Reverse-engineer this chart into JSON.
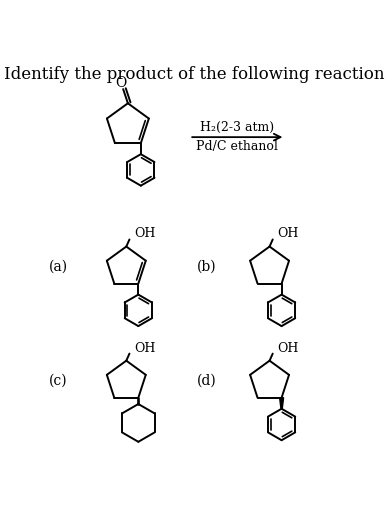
{
  "title": "Identify the product of the following reaction",
  "title_fontsize": 12,
  "title_fontweight": "normal",
  "bg_color": "#ffffff",
  "text_color": "#000000",
  "reagent_line1": "H₂(2-3 atm)",
  "reagent_line2": "Pd/C ethanol",
  "labels": [
    "(a)",
    "(b)",
    "(c)",
    "(d)"
  ],
  "label_fontsize": 10,
  "reagent_fontsize": 9,
  "oh_fontsize": 9,
  "o_fontsize": 10
}
